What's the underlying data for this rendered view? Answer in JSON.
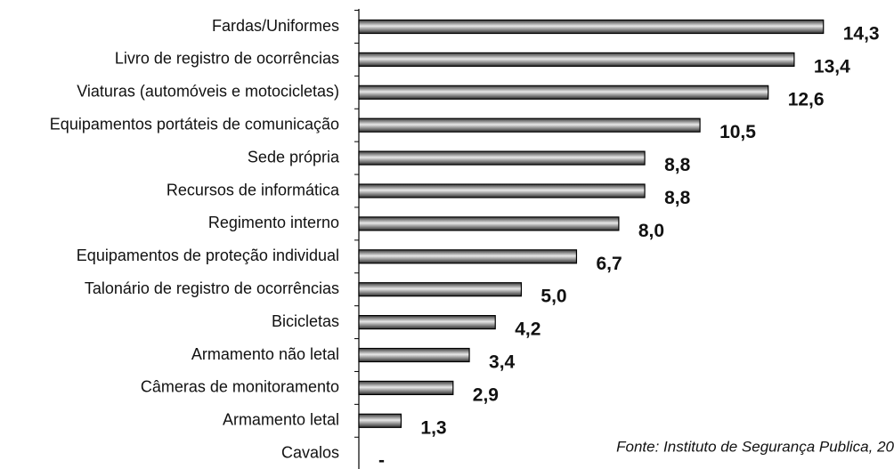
{
  "chart_data": {
    "type": "hbar",
    "categories": [
      "Fardas/Uniformes",
      "Livro de registro de ocorrências",
      "Viaturas (automóveis e motocicletas)",
      "Equipamentos portáteis de comunicação",
      "Sede própria",
      "Recursos de informática",
      "Regimento interno",
      "Equipamentos de proteção individual",
      "Talonário de registro de ocorrências",
      "Bicicletas",
      "Armamento não letal",
      "Câmeras de monitoramento",
      "Armamento letal",
      "Cavalos"
    ],
    "values": [
      14.3,
      13.4,
      12.6,
      10.5,
      8.8,
      8.8,
      8.0,
      6.7,
      5.0,
      4.2,
      3.4,
      2.9,
      1.3,
      0
    ],
    "value_labels": [
      "14,3",
      "13,4",
      "12,6",
      "10,5",
      "8,8",
      "8,8",
      "8,0",
      "6,7",
      "5,0",
      "4,2",
      "3,4",
      "2,9",
      "1,3",
      "-"
    ],
    "xlim": [
      0,
      16.5
    ],
    "color": "#9a9a9a",
    "source": "Fonte: Instituto de Segurança Publica, 20"
  }
}
